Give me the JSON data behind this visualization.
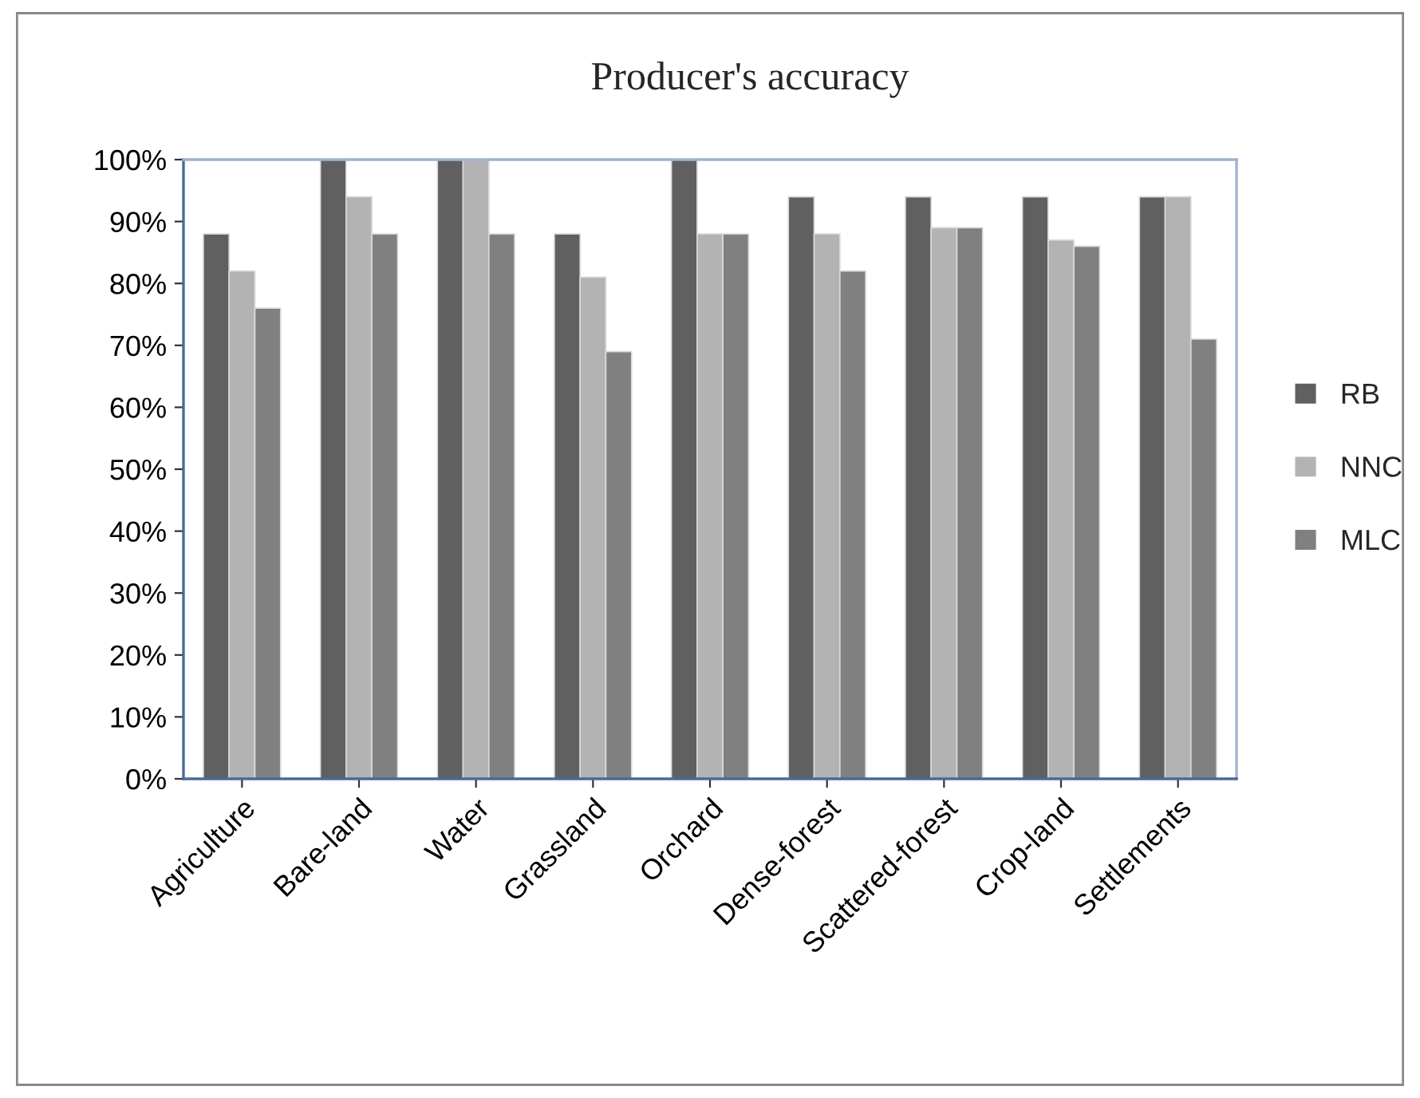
{
  "chart_data": {
    "type": "bar",
    "title": "Producer's accuracy",
    "categories": [
      "Agriculture",
      "Bare-land",
      "Water",
      "Grassland",
      "Orchard",
      "Dense-forest",
      "Scattered-forest",
      "Crop-land",
      "Settlements"
    ],
    "series": [
      {
        "name": "RB",
        "color": "#606060",
        "values": [
          88,
          100,
          100,
          88,
          100,
          94,
          94,
          94,
          94
        ]
      },
      {
        "name": "NNC",
        "color": "#b3b3b3",
        "values": [
          82,
          94,
          100,
          81,
          88,
          88,
          89,
          87,
          94
        ]
      },
      {
        "name": "MLC",
        "color": "#808080",
        "values": [
          76,
          88,
          88,
          69,
          88,
          82,
          89,
          86,
          71
        ]
      }
    ],
    "ylim": [
      0,
      100
    ],
    "yticks": [
      {
        "value": 0,
        "label": "0%"
      },
      {
        "value": 10,
        "label": "10%"
      },
      {
        "value": 20,
        "label": "20%"
      },
      {
        "value": 30,
        "label": "30%"
      },
      {
        "value": 40,
        "label": "40%"
      },
      {
        "value": 50,
        "label": "50%"
      },
      {
        "value": 60,
        "label": "60%"
      },
      {
        "value": 70,
        "label": "70%"
      },
      {
        "value": 80,
        "label": "80%"
      },
      {
        "value": 90,
        "label": "90%"
      },
      {
        "value": 100,
        "label": "100%"
      }
    ],
    "grid": false,
    "legend": "right"
  }
}
